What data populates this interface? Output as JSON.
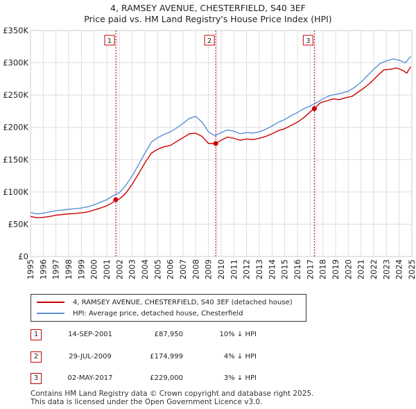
{
  "title_line1": "4, RAMSEY AVENUE, CHESTERFIELD, S40 3EF",
  "title_line2": "Price paid vs. HM Land Registry's House Price Index (HPI)",
  "chart_data": {
    "type": "line",
    "title": "4, RAMSEY AVENUE, CHESTERFIELD, S40 3EF",
    "subtitle": "Price paid vs. HM Land Registry's House Price Index (HPI)",
    "xlabel": "",
    "ylabel": "",
    "xlim": [
      1995,
      2025
    ],
    "ylim": [
      0,
      350000
    ],
    "y_ticks": [
      0,
      50000,
      100000,
      150000,
      200000,
      250000,
      300000,
      350000
    ],
    "y_tick_labels": [
      "£0",
      "£50K",
      "£100K",
      "£150K",
      "£200K",
      "£250K",
      "£300K",
      "£350K"
    ],
    "x_ticks": [
      "1995",
      "1996",
      "1997",
      "1998",
      "1999",
      "2000",
      "2001",
      "2002",
      "2003",
      "2004",
      "2005",
      "2006",
      "2007",
      "2008",
      "2009",
      "2010",
      "2011",
      "2012",
      "2013",
      "2014",
      "2015",
      "2016",
      "2017",
      "2018",
      "2019",
      "2020",
      "2021",
      "2022",
      "2023",
      "2024",
      "2025"
    ],
    "grid": true,
    "series": [
      {
        "name": "4, RAMSEY AVENUE, CHESTERFIELD, S40 3EF (detached house)",
        "color": "#cc0000",
        "points": [
          [
            1995.0,
            62000
          ],
          [
            1995.5,
            60000
          ],
          [
            1996.0,
            60500
          ],
          [
            1996.5,
            62000
          ],
          [
            1997.0,
            64000
          ],
          [
            1997.5,
            65000
          ],
          [
            1998.0,
            66000
          ],
          [
            1998.5,
            66500
          ],
          [
            1999.0,
            67500
          ],
          [
            1999.5,
            69000
          ],
          [
            2000.0,
            72000
          ],
          [
            2000.5,
            75000
          ],
          [
            2001.0,
            78500
          ],
          [
            2001.5,
            84000
          ],
          [
            2001.71,
            87950
          ],
          [
            2002.0,
            89000
          ],
          [
            2002.5,
            98000
          ],
          [
            2003.0,
            112000
          ],
          [
            2003.5,
            128000
          ],
          [
            2004.0,
            145000
          ],
          [
            2004.5,
            160000
          ],
          [
            2005.0,
            166000
          ],
          [
            2005.5,
            170000
          ],
          [
            2006.0,
            172000
          ],
          [
            2006.5,
            178000
          ],
          [
            2007.0,
            184000
          ],
          [
            2007.5,
            190000
          ],
          [
            2008.0,
            191000
          ],
          [
            2008.5,
            186000
          ],
          [
            2009.0,
            175000
          ],
          [
            2009.57,
            174999
          ],
          [
            2010.0,
            180000
          ],
          [
            2010.5,
            185000
          ],
          [
            2011.0,
            183000
          ],
          [
            2011.5,
            180000
          ],
          [
            2012.0,
            182000
          ],
          [
            2012.5,
            181000
          ],
          [
            2013.0,
            183000
          ],
          [
            2013.5,
            186000
          ],
          [
            2014.0,
            190000
          ],
          [
            2014.5,
            195000
          ],
          [
            2015.0,
            198000
          ],
          [
            2015.5,
            203000
          ],
          [
            2016.0,
            208000
          ],
          [
            2016.5,
            215000
          ],
          [
            2017.0,
            224000
          ],
          [
            2017.33,
            229000
          ],
          [
            2017.8,
            238000
          ],
          [
            2018.3,
            241000
          ],
          [
            2018.8,
            244000
          ],
          [
            2019.3,
            243000
          ],
          [
            2019.8,
            246000
          ],
          [
            2020.3,
            248000
          ],
          [
            2020.8,
            255000
          ],
          [
            2021.3,
            262000
          ],
          [
            2021.8,
            270000
          ],
          [
            2022.3,
            280000
          ],
          [
            2022.8,
            289000
          ],
          [
            2023.3,
            290000
          ],
          [
            2023.8,
            292000
          ],
          [
            2024.3,
            288000
          ],
          [
            2024.6,
            284000
          ],
          [
            2024.9,
            294000
          ]
        ]
      },
      {
        "name": "HPI: Average price, detached house, Chesterfield",
        "color": "#5b8fd6",
        "points": [
          [
            1995.0,
            68000
          ],
          [
            1995.5,
            66000
          ],
          [
            1996.0,
            67000
          ],
          [
            1996.5,
            69000
          ],
          [
            1997.0,
            71000
          ],
          [
            1997.5,
            72000
          ],
          [
            1998.0,
            73000
          ],
          [
            1998.5,
            74000
          ],
          [
            1999.0,
            75000
          ],
          [
            1999.5,
            77000
          ],
          [
            2000.0,
            80000
          ],
          [
            2000.5,
            84000
          ],
          [
            2001.0,
            88000
          ],
          [
            2001.5,
            94000
          ],
          [
            2002.0,
            99000
          ],
          [
            2002.5,
            110000
          ],
          [
            2003.0,
            125000
          ],
          [
            2003.5,
            142000
          ],
          [
            2004.0,
            160000
          ],
          [
            2004.5,
            177000
          ],
          [
            2005.0,
            184000
          ],
          [
            2005.5,
            189000
          ],
          [
            2006.0,
            193000
          ],
          [
            2006.5,
            199000
          ],
          [
            2007.0,
            206000
          ],
          [
            2007.5,
            214000
          ],
          [
            2008.0,
            217000
          ],
          [
            2008.5,
            208000
          ],
          [
            2009.0,
            193000
          ],
          [
            2009.5,
            187000
          ],
          [
            2010.0,
            192000
          ],
          [
            2010.5,
            196000
          ],
          [
            2011.0,
            194000
          ],
          [
            2011.5,
            190000
          ],
          [
            2012.0,
            192000
          ],
          [
            2012.5,
            191000
          ],
          [
            2013.0,
            193000
          ],
          [
            2013.5,
            197000
          ],
          [
            2014.0,
            202000
          ],
          [
            2014.5,
            208000
          ],
          [
            2015.0,
            212000
          ],
          [
            2015.5,
            218000
          ],
          [
            2016.0,
            223000
          ],
          [
            2016.5,
            229000
          ],
          [
            2017.0,
            233000
          ],
          [
            2017.5,
            238000
          ],
          [
            2018.0,
            244000
          ],
          [
            2018.5,
            249000
          ],
          [
            2019.0,
            251000
          ],
          [
            2019.5,
            253000
          ],
          [
            2020.0,
            256000
          ],
          [
            2020.5,
            262000
          ],
          [
            2021.0,
            270000
          ],
          [
            2021.5,
            280000
          ],
          [
            2022.0,
            290000
          ],
          [
            2022.5,
            299000
          ],
          [
            2023.0,
            303000
          ],
          [
            2023.5,
            306000
          ],
          [
            2024.0,
            304000
          ],
          [
            2024.5,
            300000
          ],
          [
            2024.9,
            310000
          ]
        ]
      }
    ],
    "transactions": [
      {
        "label": "1",
        "x": 2001.71,
        "y": 87950
      },
      {
        "label": "2",
        "x": 2009.57,
        "y": 174999
      },
      {
        "label": "3",
        "x": 2017.33,
        "y": 229000
      }
    ]
  },
  "legend": {
    "property_label": "4, RAMSEY AVENUE, CHESTERFIELD, S40 3EF (detached house)",
    "hpi_label": "HPI: Average price, detached house, Chesterfield"
  },
  "transactions_table": [
    {
      "num": "1",
      "date": "14-SEP-2001",
      "price": "£87,950",
      "hpi": "10% ↓ HPI"
    },
    {
      "num": "2",
      "date": "29-JUL-2009",
      "price": "£174,999",
      "hpi": "4% ↓ HPI"
    },
    {
      "num": "3",
      "date": "02-MAY-2017",
      "price": "£229,000",
      "hpi": "3% ↓ HPI"
    }
  ],
  "footer_line1": "Contains HM Land Registry data © Crown copyright and database right 2025.",
  "footer_line2": "This data is licensed under the Open Government Licence v3.0.",
  "colors": {
    "property": "#cc0000",
    "hpi": "#5b8fd6",
    "grid": "#dddddd",
    "marker_line": "#cc0000",
    "band": "#eef2fb"
  }
}
